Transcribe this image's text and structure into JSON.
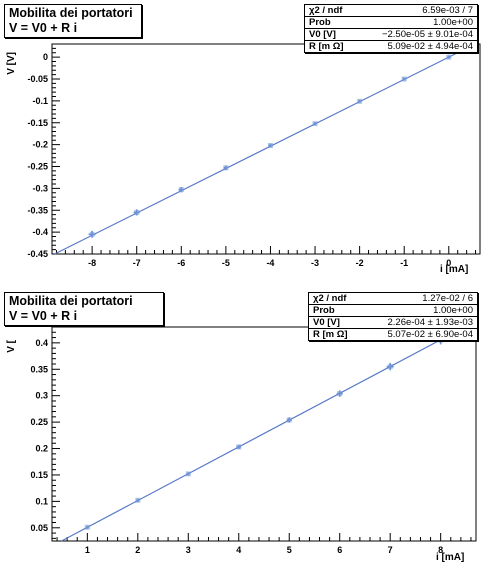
{
  "chart_data": [
    {
      "type": "scatter",
      "title_line1": "Mobilita dei portatori",
      "title_line2": "V = V0 + R i",
      "xlabel": "i [mA]",
      "ylabel": "V [V]",
      "xlim": [
        -8.9,
        0.7
      ],
      "ylim": [
        -0.45,
        0.03
      ],
      "xticks": [
        "-8",
        "-7",
        "-6",
        "-5",
        "-4",
        "-3",
        "-2",
        "-1",
        "0"
      ],
      "yticks": [
        "0",
        "-0.05",
        "-0.1",
        "-0.15",
        "-0.2",
        "-0.25",
        "-0.3",
        "-0.35",
        "-0.4",
        "-0.45"
      ],
      "points": [
        {
          "x": -8,
          "y": -0.405,
          "ex": 0.08,
          "ey": 0.008
        },
        {
          "x": -7,
          "y": -0.355,
          "ex": 0.07,
          "ey": 0.007
        },
        {
          "x": -6,
          "y": -0.303,
          "ex": 0.06,
          "ey": 0.006
        },
        {
          "x": -5,
          "y": -0.253,
          "ex": 0.05,
          "ey": 0.005
        },
        {
          "x": -4,
          "y": -0.202,
          "ex": 0.04,
          "ey": 0.004
        },
        {
          "x": -3,
          "y": -0.152,
          "ex": 0.03,
          "ey": 0.003
        },
        {
          "x": -2,
          "y": -0.101,
          "ex": 0.02,
          "ey": 0.002
        },
        {
          "x": -1,
          "y": -0.05,
          "ex": 0.01,
          "ey": 0.001
        },
        {
          "x": 0,
          "y": 0.0,
          "ex": 0.0,
          "ey": 0.0
        }
      ],
      "fit": {
        "intercept": -2.5e-05,
        "slope": 0.0509
      },
      "stats": [
        {
          "label": "χ2 / ndf",
          "value": "6.59e-03 / 7"
        },
        {
          "label": "Prob",
          "value": "1.00e+00"
        },
        {
          "label": "V0 [V]",
          "value": "−2.50e-05 ± 9.01e-04"
        },
        {
          "label": "R [m Ω]",
          "value": "5.09e-02 ± 4.94e-04"
        }
      ]
    },
    {
      "type": "scatter",
      "title_line1": "Mobilita dei portatori",
      "title_line2": "V = V0 + R i",
      "xlabel": "i [mA]",
      "ylabel": "V [",
      "xlim": [
        0.3,
        8.7
      ],
      "ylim": [
        0.025,
        0.43
      ],
      "xticks": [
        "1",
        "2",
        "3",
        "4",
        "5",
        "6",
        "7",
        "8"
      ],
      "yticks": [
        "0.05",
        "0.1",
        "0.15",
        "0.2",
        "0.25",
        "0.3",
        "0.35",
        "0.4"
      ],
      "points": [
        {
          "x": 1,
          "y": 0.051,
          "ex": 0.01,
          "ey": 0.001
        },
        {
          "x": 2,
          "y": 0.102,
          "ex": 0.02,
          "ey": 0.002
        },
        {
          "x": 3,
          "y": 0.152,
          "ex": 0.03,
          "ey": 0.003
        },
        {
          "x": 4,
          "y": 0.203,
          "ex": 0.04,
          "ey": 0.004
        },
        {
          "x": 5,
          "y": 0.254,
          "ex": 0.05,
          "ey": 0.005
        },
        {
          "x": 6,
          "y": 0.304,
          "ex": 0.06,
          "ey": 0.006
        },
        {
          "x": 7,
          "y": 0.355,
          "ex": 0.07,
          "ey": 0.007
        },
        {
          "x": 8,
          "y": 0.405,
          "ex": 0.08,
          "ey": 0.008
        }
      ],
      "fit": {
        "intercept": 0.000226,
        "slope": 0.0507
      },
      "stats": [
        {
          "label": "χ2 / ndf",
          "value": "1.27e-02 / 6"
        },
        {
          "label": "Prob",
          "value": "1.00e+00"
        },
        {
          "label": "V0 [V]",
          "value": "2.26e-04 ± 1.93e-03"
        },
        {
          "label": "R [m Ω]",
          "value": "5.07e-02 ± 6.90e-04"
        }
      ]
    }
  ],
  "colors": {
    "points": "#6e93d6",
    "fit": "#5878c8",
    "axis": "#000000"
  }
}
